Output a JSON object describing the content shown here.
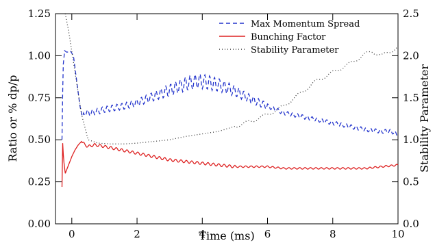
{
  "chart_data": {
    "type": "line",
    "xlabel": "Time (ms)",
    "ylabel_left": "Ratio or % dp/p",
    "ylabel_right": "Stability Parameter",
    "xlim": [
      -0.5,
      10
    ],
    "ylim_left": [
      0,
      1.25
    ],
    "ylim_right": [
      0,
      2.5
    ],
    "x_ticks": [
      "0",
      "2",
      "4",
      "6",
      "8",
      "10"
    ],
    "y_left_ticks": [
      "0.00",
      "0.25",
      "0.50",
      "0.75",
      "1.00",
      "1.25"
    ],
    "y_right_ticks": [
      "0.0",
      "0.5",
      "1.0",
      "1.5",
      "2.0",
      "2.5"
    ],
    "grid": false,
    "legend_position": "top-right",
    "series": [
      {
        "name": "Max Momentum Spread",
        "axis": "left",
        "style": "dashed",
        "color": "#2233cc",
        "x": [
          -0.3,
          -0.27,
          -0.22,
          -0.15,
          -0.05,
          0.05,
          0.15,
          0.25,
          0.32,
          0.4,
          0.6,
          0.8,
          1.0,
          1.3,
          1.6,
          2.0,
          2.4,
          2.8,
          3.2,
          3.6,
          3.9,
          4.2,
          4.6,
          5.0,
          5.5,
          6.0,
          6.5,
          7.0,
          7.5,
          8.0,
          8.5,
          9.0,
          9.5,
          9.8,
          10.0
        ],
        "values": [
          0.5,
          0.93,
          1.03,
          1.02,
          1.03,
          1.0,
          0.85,
          0.7,
          0.64,
          0.66,
          0.66,
          0.67,
          0.68,
          0.69,
          0.7,
          0.72,
          0.75,
          0.78,
          0.81,
          0.84,
          0.85,
          0.84,
          0.82,
          0.79,
          0.74,
          0.7,
          0.66,
          0.64,
          0.62,
          0.6,
          0.58,
          0.56,
          0.55,
          0.55,
          0.53
        ]
      },
      {
        "name": "Bunching Factor",
        "axis": "left",
        "style": "solid",
        "color": "#dd2020",
        "x": [
          -0.3,
          -0.28,
          -0.25,
          -0.2,
          -0.1,
          0.0,
          0.1,
          0.2,
          0.3,
          0.4,
          0.5,
          0.7,
          1.0,
          1.5,
          2.0,
          2.5,
          3.0,
          3.5,
          4.0,
          4.5,
          5.0,
          5.5,
          6.0,
          6.5,
          7.0,
          7.5,
          8.0,
          8.5,
          9.0,
          9.5,
          10.0
        ],
        "values": [
          0.22,
          0.48,
          0.38,
          0.3,
          0.35,
          0.4,
          0.44,
          0.47,
          0.49,
          0.47,
          0.46,
          0.47,
          0.46,
          0.44,
          0.42,
          0.4,
          0.38,
          0.37,
          0.36,
          0.35,
          0.34,
          0.34,
          0.34,
          0.33,
          0.33,
          0.33,
          0.33,
          0.33,
          0.33,
          0.34,
          0.35
        ]
      },
      {
        "name": "Stability Parameter",
        "axis": "right",
        "style": "dotted",
        "color": "#333333",
        "x": [
          -0.2,
          -0.1,
          0.0,
          0.1,
          0.2,
          0.3,
          0.5,
          0.8,
          1.2,
          1.6,
          2.0,
          2.5,
          3.0,
          3.5,
          4.0,
          4.5,
          5.0,
          5.5,
          6.0,
          6.5,
          7.0,
          7.5,
          8.0,
          8.5,
          9.0,
          9.2,
          9.5,
          10.0
        ],
        "values": [
          2.5,
          2.3,
          2.05,
          1.8,
          1.55,
          1.3,
          1.0,
          0.96,
          0.95,
          0.95,
          0.96,
          0.98,
          1.0,
          1.04,
          1.07,
          1.1,
          1.16,
          1.22,
          1.3,
          1.4,
          1.55,
          1.7,
          1.8,
          1.9,
          2.02,
          2.05,
          2.0,
          2.1
        ]
      }
    ]
  }
}
